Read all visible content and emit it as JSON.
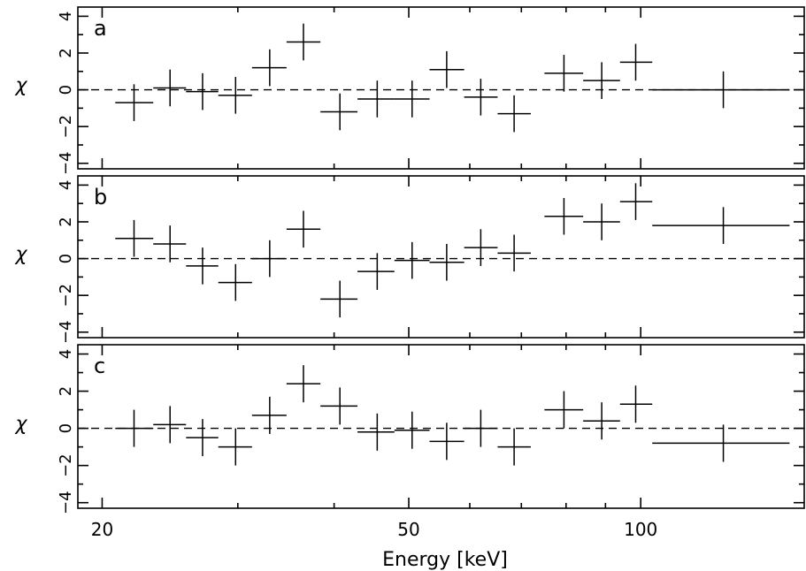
{
  "chart_data": {
    "type": "scatter",
    "xlabel": "Energy [keV]",
    "xscale": "log",
    "xlim": [
      18.6,
      163
    ],
    "x_tick_labels": [
      "20",
      "50",
      "100"
    ],
    "colors": {
      "axes": "#000000",
      "data": "#000000",
      "background": "#ffffff"
    },
    "panels": [
      {
        "label": "a",
        "ylabel": "χ",
        "ylim": [
          -4.3,
          4.5
        ],
        "y_tick_labels": [
          "4",
          "2",
          "0",
          "−2",
          "−4"
        ],
        "points": [
          {
            "x": 22.0,
            "x_lo": 20.8,
            "x_hi": 23.3,
            "y": -0.7,
            "y_err": 1.0
          },
          {
            "x": 24.5,
            "x_lo": 23.3,
            "x_hi": 25.7,
            "y": 0.1,
            "y_err": 1.0
          },
          {
            "x": 27.0,
            "x_lo": 25.7,
            "x_hi": 28.3,
            "y": -0.1,
            "y_err": 1.0
          },
          {
            "x": 29.8,
            "x_lo": 28.3,
            "x_hi": 31.3,
            "y": -0.3,
            "y_err": 1.0
          },
          {
            "x": 33.0,
            "x_lo": 31.3,
            "x_hi": 34.7,
            "y": 1.2,
            "y_err": 1.0
          },
          {
            "x": 36.5,
            "x_lo": 34.7,
            "x_hi": 38.4,
            "y": 2.6,
            "y_err": 1.0
          },
          {
            "x": 40.7,
            "x_lo": 38.4,
            "x_hi": 42.9,
            "y": -1.2,
            "y_err": 1.0
          },
          {
            "x": 45.5,
            "x_lo": 42.9,
            "x_hi": 47.9,
            "y": -0.5,
            "y_err": 1.0
          },
          {
            "x": 50.5,
            "x_lo": 47.9,
            "x_hi": 53.2,
            "y": -0.5,
            "y_err": 1.0
          },
          {
            "x": 56.0,
            "x_lo": 53.2,
            "x_hi": 59.0,
            "y": 1.1,
            "y_err": 1.0
          },
          {
            "x": 62.0,
            "x_lo": 59.0,
            "x_hi": 65.2,
            "y": -0.4,
            "y_err": 1.0
          },
          {
            "x": 68.5,
            "x_lo": 65.2,
            "x_hi": 72.0,
            "y": -1.3,
            "y_err": 1.0
          },
          {
            "x": 79.5,
            "x_lo": 75.0,
            "x_hi": 84.2,
            "y": 0.9,
            "y_err": 1.0
          },
          {
            "x": 89.0,
            "x_lo": 84.2,
            "x_hi": 94.0,
            "y": 0.5,
            "y_err": 1.0
          },
          {
            "x": 98.5,
            "x_lo": 94.0,
            "x_hi": 103.5,
            "y": 1.5,
            "y_err": 1.0
          },
          {
            "x": 128.0,
            "x_lo": 103.5,
            "x_hi": 156.0,
            "y": 0.0,
            "y_err": 1.0
          }
        ]
      },
      {
        "label": "b",
        "ylabel": "χ",
        "ylim": [
          -4.3,
          4.5
        ],
        "y_tick_labels": [
          "4",
          "2",
          "0",
          "−2",
          "−4"
        ],
        "points": [
          {
            "x": 22.0,
            "x_lo": 20.8,
            "x_hi": 23.3,
            "y": 1.1,
            "y_err": 1.0
          },
          {
            "x": 24.5,
            "x_lo": 23.3,
            "x_hi": 25.7,
            "y": 0.8,
            "y_err": 1.0
          },
          {
            "x": 27.0,
            "x_lo": 25.7,
            "x_hi": 28.3,
            "y": -0.4,
            "y_err": 1.0
          },
          {
            "x": 29.8,
            "x_lo": 28.3,
            "x_hi": 31.3,
            "y": -1.3,
            "y_err": 1.0
          },
          {
            "x": 33.0,
            "x_lo": 31.3,
            "x_hi": 34.7,
            "y": 0.0,
            "y_err": 1.0
          },
          {
            "x": 36.5,
            "x_lo": 34.7,
            "x_hi": 38.4,
            "y": 1.6,
            "y_err": 1.0
          },
          {
            "x": 40.7,
            "x_lo": 38.4,
            "x_hi": 42.9,
            "y": -2.2,
            "y_err": 1.0
          },
          {
            "x": 45.5,
            "x_lo": 42.9,
            "x_hi": 47.9,
            "y": -0.7,
            "y_err": 1.0
          },
          {
            "x": 50.5,
            "x_lo": 47.9,
            "x_hi": 53.2,
            "y": -0.1,
            "y_err": 1.0
          },
          {
            "x": 56.0,
            "x_lo": 53.2,
            "x_hi": 59.0,
            "y": -0.2,
            "y_err": 1.0
          },
          {
            "x": 62.0,
            "x_lo": 59.0,
            "x_hi": 65.2,
            "y": 0.6,
            "y_err": 1.0
          },
          {
            "x": 68.5,
            "x_lo": 65.2,
            "x_hi": 72.0,
            "y": 0.3,
            "y_err": 1.0
          },
          {
            "x": 79.5,
            "x_lo": 75.0,
            "x_hi": 84.2,
            "y": 2.3,
            "y_err": 1.0
          },
          {
            "x": 89.0,
            "x_lo": 84.2,
            "x_hi": 94.0,
            "y": 2.0,
            "y_err": 1.0
          },
          {
            "x": 98.5,
            "x_lo": 94.0,
            "x_hi": 103.5,
            "y": 3.1,
            "y_err": 1.0
          },
          {
            "x": 128.0,
            "x_lo": 103.5,
            "x_hi": 156.0,
            "y": 1.8,
            "y_err": 1.0
          }
        ]
      },
      {
        "label": "c",
        "ylabel": "χ",
        "ylim": [
          -4.3,
          4.5
        ],
        "y_tick_labels": [
          "4",
          "2",
          "0",
          "−2",
          "−4"
        ],
        "points": [
          {
            "x": 22.0,
            "x_lo": 20.8,
            "x_hi": 23.3,
            "y": 0.0,
            "y_err": 1.0
          },
          {
            "x": 24.5,
            "x_lo": 23.3,
            "x_hi": 25.7,
            "y": 0.2,
            "y_err": 1.0
          },
          {
            "x": 27.0,
            "x_lo": 25.7,
            "x_hi": 28.3,
            "y": -0.5,
            "y_err": 1.0
          },
          {
            "x": 29.8,
            "x_lo": 28.3,
            "x_hi": 31.3,
            "y": -1.0,
            "y_err": 1.0
          },
          {
            "x": 33.0,
            "x_lo": 31.3,
            "x_hi": 34.7,
            "y": 0.7,
            "y_err": 1.0
          },
          {
            "x": 36.5,
            "x_lo": 34.7,
            "x_hi": 38.4,
            "y": 2.4,
            "y_err": 1.0
          },
          {
            "x": 40.7,
            "x_lo": 38.4,
            "x_hi": 42.9,
            "y": 1.2,
            "y_err": 1.0
          },
          {
            "x": 45.5,
            "x_lo": 42.9,
            "x_hi": 47.9,
            "y": -0.2,
            "y_err": 1.0
          },
          {
            "x": 50.5,
            "x_lo": 47.9,
            "x_hi": 53.2,
            "y": -0.1,
            "y_err": 1.0
          },
          {
            "x": 56.0,
            "x_lo": 53.2,
            "x_hi": 59.0,
            "y": -0.7,
            "y_err": 1.0
          },
          {
            "x": 62.0,
            "x_lo": 59.0,
            "x_hi": 65.2,
            "y": 0.0,
            "y_err": 1.0
          },
          {
            "x": 68.5,
            "x_lo": 65.2,
            "x_hi": 72.0,
            "y": -1.0,
            "y_err": 1.0
          },
          {
            "x": 79.5,
            "x_lo": 75.0,
            "x_hi": 84.2,
            "y": 1.0,
            "y_err": 1.0
          },
          {
            "x": 89.0,
            "x_lo": 84.2,
            "x_hi": 94.0,
            "y": 0.4,
            "y_err": 1.0
          },
          {
            "x": 98.5,
            "x_lo": 94.0,
            "x_hi": 103.5,
            "y": 1.3,
            "y_err": 1.0
          },
          {
            "x": 128.0,
            "x_lo": 103.5,
            "x_hi": 156.0,
            "y": -0.8,
            "y_err": 1.0
          }
        ]
      }
    ]
  }
}
